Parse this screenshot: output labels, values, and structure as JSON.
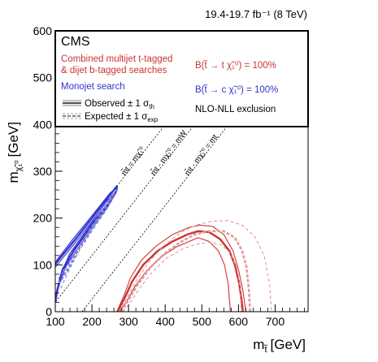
{
  "chart_data": {
    "type": "line",
    "lumi_label": "19.4-19.7 fb⁻¹ (8 TeV)",
    "experiment": "CMS",
    "xlabel": "m",
    "xlabel_sub": "t̃",
    "xunit": "[GeV]",
    "ylabel": "m",
    "ylabel_sub": "χ̃₁⁰",
    "yunit": "[GeV]",
    "xlim": [
      100,
      790
    ],
    "ylim": [
      0,
      600
    ],
    "xticks": [
      "100",
      "200",
      "300",
      "400",
      "500",
      "600",
      "700"
    ],
    "yticks": [
      "0",
      "100",
      "200",
      "300",
      "400",
      "500",
      "600"
    ],
    "xtick_values": [
      100,
      200,
      300,
      400,
      500,
      600,
      700
    ],
    "ytick_values": [
      0,
      100,
      200,
      300,
      400,
      500,
      600
    ],
    "legend": {
      "combined_line1": "Combined multijet t-tagged",
      "combined_line2": "& dijet b-tagged searches",
      "monojet": "Monojet search",
      "observed": "Observed ± 1 σ",
      "observed_sub": "th",
      "expected": "Expected ± 1 σ",
      "expected_sub": "exp",
      "br_top": "B(t̃ → t χ̃₁⁰) = 100%",
      "br_charm": "B(t̃ → c χ̃₁⁰) = 100%",
      "nlo": "NLO-NLL exclusion"
    },
    "diagonals": [
      {
        "label": "m̃t = mχ̃₁⁰",
        "offset": 0
      },
      {
        "label": "m̃t - mχ̃₁⁰ = mW",
        "offset": 80
      },
      {
        "label": "m̃t - mχ̃₁⁰ = mt",
        "offset": 173
      }
    ],
    "colors": {
      "combined": "#cc3333",
      "combined_light": "#e39a9a",
      "monojet": "#3333cc",
      "monojet_light": "#8080dd"
    },
    "series": [
      {
        "name": "Monojet search",
        "group": "monojet",
        "style": "observed",
        "points": [
          [
            100,
            102
          ],
          [
            150,
            150
          ],
          [
            200,
            200
          ],
          [
            250,
            250
          ],
          [
            268,
            268
          ],
          [
            267,
            258
          ],
          [
            250,
            235
          ],
          [
            200,
            185
          ],
          [
            150,
            130
          ],
          [
            120,
            90
          ],
          [
            105,
            45
          ],
          [
            100,
            20
          ]
        ]
      },
      {
        "group": "monojet",
        "style": "observed_band",
        "points": [
          [
            102,
            108
          ],
          [
            150,
            157
          ],
          [
            200,
            205
          ],
          [
            250,
            254
          ],
          [
            270,
            266
          ],
          [
            258,
            245
          ],
          [
            200,
            190
          ],
          [
            140,
            125
          ],
          [
            115,
            80
          ],
          [
            103,
            40
          ]
        ]
      },
      {
        "group": "monojet",
        "style": "observed_band",
        "points": [
          [
            100,
            95
          ],
          [
            150,
            143
          ],
          [
            200,
            193
          ],
          [
            245,
            240
          ],
          [
            262,
            250
          ],
          [
            245,
            226
          ],
          [
            200,
            178
          ],
          [
            155,
            128
          ],
          [
            128,
            95
          ],
          [
            110,
            55
          ],
          [
            100,
            25
          ]
        ]
      },
      {
        "group": "monojet",
        "style": "expected",
        "points": [
          [
            110,
            60
          ],
          [
            135,
            92
          ],
          [
            165,
            135
          ],
          [
            200,
            178
          ],
          [
            240,
            225
          ],
          [
            262,
            255
          ],
          [
            268,
            262
          ]
        ]
      },
      {
        "group": "monojet",
        "style": "expected_band",
        "points": [
          [
            115,
            50
          ],
          [
            135,
            85
          ],
          [
            165,
            130
          ],
          [
            200,
            172
          ],
          [
            240,
            218
          ],
          [
            262,
            250
          ]
        ]
      },
      {
        "group": "monojet",
        "style": "expected_band",
        "points": [
          [
            108,
            70
          ],
          [
            135,
            100
          ],
          [
            165,
            140
          ],
          [
            200,
            184
          ],
          [
            240,
            230
          ],
          [
            262,
            260
          ]
        ]
      },
      {
        "name": "Combined multijet t-tagged & dijet b-tagged searches",
        "group": "combined",
        "style": "observed",
        "points": [
          [
            270,
            0
          ],
          [
            290,
            30
          ],
          [
            310,
            65
          ],
          [
            340,
            100
          ],
          [
            380,
            130
          ],
          [
            420,
            150
          ],
          [
            460,
            165
          ],
          [
            490,
            172
          ],
          [
            520,
            170
          ],
          [
            550,
            155
          ],
          [
            575,
            130
          ],
          [
            590,
            100
          ],
          [
            602,
            60
          ],
          [
            610,
            15
          ],
          [
            612,
            0
          ]
        ]
      },
      {
        "group": "combined",
        "style": "observed_band",
        "points": [
          [
            268,
            0
          ],
          [
            288,
            35
          ],
          [
            305,
            72
          ],
          [
            335,
            110
          ],
          [
            375,
            140
          ],
          [
            420,
            165
          ],
          [
            465,
            180
          ],
          [
            495,
            185
          ],
          [
            530,
            182
          ],
          [
            560,
            165
          ],
          [
            585,
            130
          ],
          [
            600,
            90
          ],
          [
            612,
            45
          ],
          [
            620,
            0
          ]
        ]
      },
      {
        "group": "combined",
        "style": "observed_band",
        "points": [
          [
            275,
            0
          ],
          [
            295,
            22
          ],
          [
            318,
            55
          ],
          [
            350,
            88
          ],
          [
            390,
            118
          ],
          [
            430,
            138
          ],
          [
            465,
            150
          ],
          [
            490,
            158
          ],
          [
            520,
            150
          ],
          [
            545,
            130
          ],
          [
            562,
            100
          ],
          [
            572,
            60
          ],
          [
            578,
            0
          ]
        ]
      },
      {
        "group": "combined",
        "style": "expected",
        "points": [
          [
            280,
            0
          ],
          [
            300,
            25
          ],
          [
            325,
            58
          ],
          [
            360,
            95
          ],
          [
            400,
            125
          ],
          [
            440,
            148
          ],
          [
            480,
            165
          ],
          [
            520,
            172
          ],
          [
            560,
            172
          ],
          [
            590,
            158
          ],
          [
            610,
            130
          ],
          [
            622,
            95
          ],
          [
            628,
            50
          ],
          [
            632,
            0
          ]
        ]
      },
      {
        "group": "combined",
        "style": "expected_band",
        "points": [
          [
            275,
            0
          ],
          [
            295,
            28
          ],
          [
            320,
            65
          ],
          [
            355,
            105
          ],
          [
            395,
            140
          ],
          [
            440,
            168
          ],
          [
            485,
            185
          ],
          [
            525,
            193
          ],
          [
            570,
            195
          ],
          [
            610,
            185
          ],
          [
            645,
            160
          ],
          [
            670,
            120
          ],
          [
            685,
            60
          ],
          [
            690,
            0
          ]
        ]
      },
      {
        "group": "combined",
        "style": "expected_band",
        "points": [
          [
            285,
            0
          ],
          [
            305,
            20
          ],
          [
            330,
            50
          ],
          [
            365,
            85
          ],
          [
            405,
            115
          ],
          [
            450,
            135
          ],
          [
            490,
            145
          ],
          [
            525,
            148
          ],
          [
            555,
            142
          ],
          [
            578,
            125
          ],
          [
            595,
            95
          ],
          [
            605,
            50
          ],
          [
            607,
            0
          ]
        ]
      }
    ]
  }
}
